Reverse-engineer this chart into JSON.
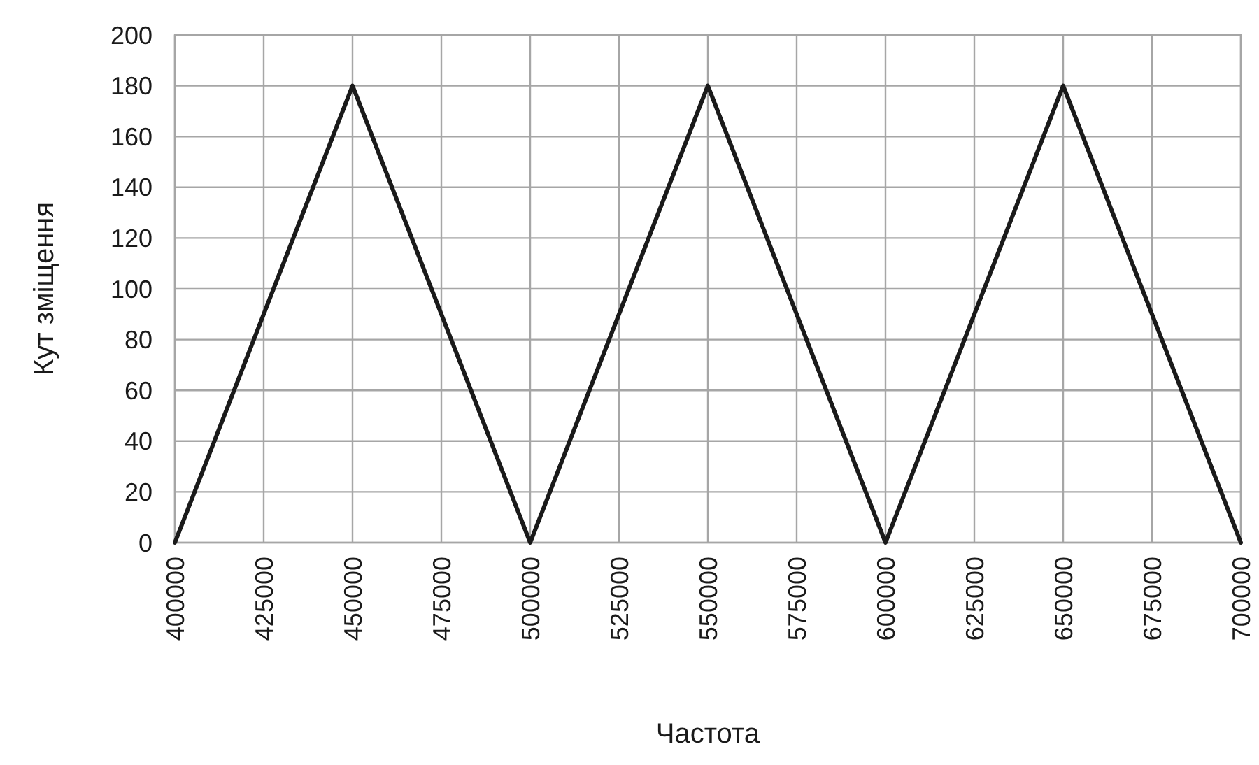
{
  "chart_data": {
    "type": "line",
    "xlabel": "Частота",
    "ylabel": "Кут зміщення",
    "x": [
      400000,
      450000,
      500000,
      550000,
      600000,
      650000,
      700000
    ],
    "series": [
      {
        "color": "#1a1a1a",
        "values": [
          0,
          180,
          0,
          180,
          0,
          180,
          0
        ]
      }
    ],
    "xlim": [
      400000,
      700000
    ],
    "xticks": [
      400000,
      425000,
      450000,
      475000,
      500000,
      525000,
      550000,
      575000,
      600000,
      625000,
      650000,
      675000,
      700000
    ],
    "ylim": [
      0,
      200
    ],
    "yticks": [
      0,
      20,
      40,
      60,
      80,
      100,
      120,
      140,
      160,
      180,
      200
    ],
    "grid": true,
    "marker": "none",
    "line_style": "solid"
  }
}
